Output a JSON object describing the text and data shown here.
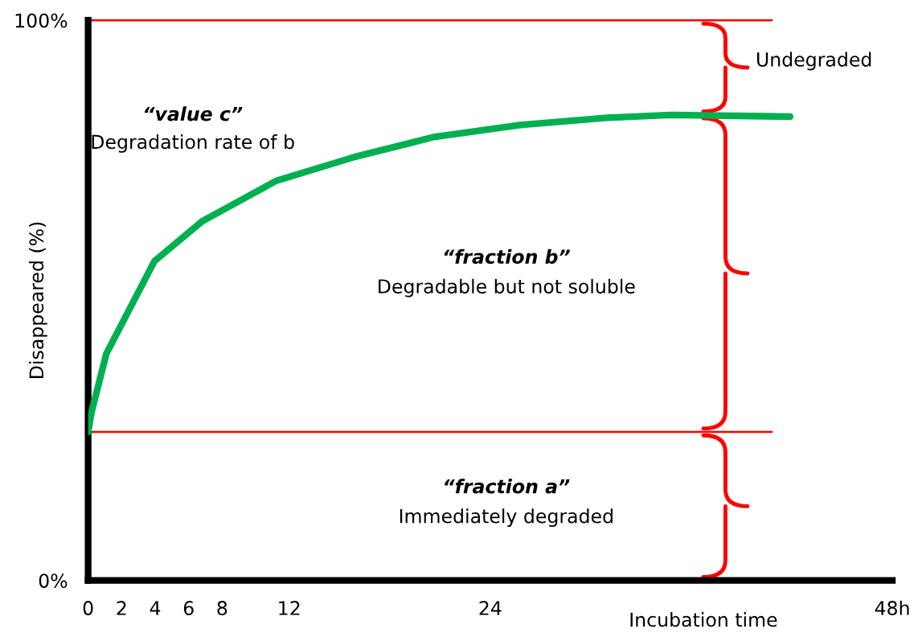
{
  "chart_data": {
    "type": "line",
    "xlabel": "Incubation time",
    "ylabel": "Disappeared (%)",
    "x": [
      0,
      0.2,
      1.09,
      2.83,
      3.96,
      6.8,
      11.2,
      15.9,
      20.7,
      25.8,
      31.0,
      34.8,
      41.9
    ],
    "series": [
      {
        "color": "#00b050",
        "values": [
          26.5,
          30.0,
          40.5,
          50.5,
          57.0,
          64.1,
          71.3,
          75.6,
          79.2,
          81.3,
          82.6,
          83.1,
          82.8
        ]
      }
    ],
    "xlim": [
      0,
      48
    ],
    "xticks": [
      0,
      2,
      4,
      6,
      8,
      12,
      24,
      {
        "value": 48,
        "label": "48h"
      }
    ],
    "ylim": [
      0,
      100
    ],
    "yticks": [
      {
        "value": 0,
        "label": "0%"
      },
      {
        "value": 100,
        "label": "100%"
      }
    ],
    "ref_lines": [
      {
        "axis": "y",
        "value": 100,
        "color": "#ff0000"
      },
      {
        "axis": "y",
        "value": 26.5,
        "color": "#ff0000"
      }
    ],
    "annotations": [
      "“value c”",
      "Degradation rate of b",
      "“fraction b”",
      "Degradable but not soluble",
      "“fraction a”",
      "Immediately degraded",
      "Undegraded"
    ],
    "grid": false,
    "legend": false,
    "marker": "none",
    "line_style": "solid"
  }
}
